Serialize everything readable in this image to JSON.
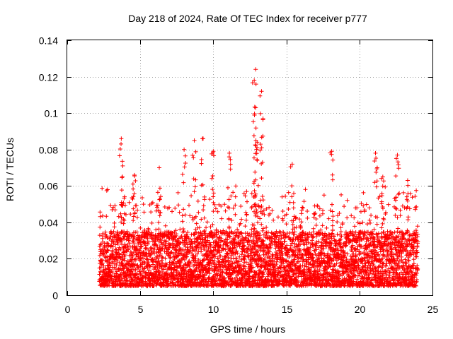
{
  "chart_data": {
    "type": "scatter",
    "title": "Day 218 of 2024, Rate Of TEC Index for receiver p777",
    "xlabel": "GPS time / hours",
    "ylabel": "ROTI / TECUs",
    "xlim": [
      0,
      25
    ],
    "ylim": [
      0,
      0.14
    ],
    "xticks": [
      0,
      5,
      10,
      15,
      20,
      25
    ],
    "xtick_labels": [
      "0",
      "5",
      "10",
      "15",
      "20",
      "25"
    ],
    "yticks": [
      0,
      0.02,
      0.04,
      0.06,
      0.08,
      0.1,
      0.12,
      0.14
    ],
    "ytick_labels": [
      "0",
      "0.02",
      "0.04",
      "0.06",
      "0.08",
      "0.1",
      "0.12",
      "0.14"
    ],
    "grid": true,
    "marker": "+",
    "color": "#ff0000",
    "series": [
      {
        "name": "ROTI",
        "x_range": [
          2.2,
          24.0
        ],
        "typical_band": [
          0.005,
          0.035
        ],
        "peaks": [
          {
            "x": 3.7,
            "y": 0.086
          },
          {
            "x": 3.8,
            "y": 0.071
          },
          {
            "x": 4.6,
            "y": 0.066
          },
          {
            "x": 6.3,
            "y": 0.07
          },
          {
            "x": 8.0,
            "y": 0.08
          },
          {
            "x": 8.7,
            "y": 0.085
          },
          {
            "x": 9.3,
            "y": 0.086
          },
          {
            "x": 10.0,
            "y": 0.079
          },
          {
            "x": 11.1,
            "y": 0.078
          },
          {
            "x": 12.9,
            "y": 0.124
          },
          {
            "x": 12.8,
            "y": 0.118
          },
          {
            "x": 12.9,
            "y": 0.103
          },
          {
            "x": 13.0,
            "y": 0.084
          },
          {
            "x": 13.3,
            "y": 0.112
          },
          {
            "x": 13.4,
            "y": 0.097
          },
          {
            "x": 15.4,
            "y": 0.072
          },
          {
            "x": 18.1,
            "y": 0.079
          },
          {
            "x": 21.1,
            "y": 0.078
          },
          {
            "x": 21.6,
            "y": 0.065
          },
          {
            "x": 22.6,
            "y": 0.077
          },
          {
            "x": 23.3,
            "y": 0.063
          }
        ]
      }
    ]
  }
}
